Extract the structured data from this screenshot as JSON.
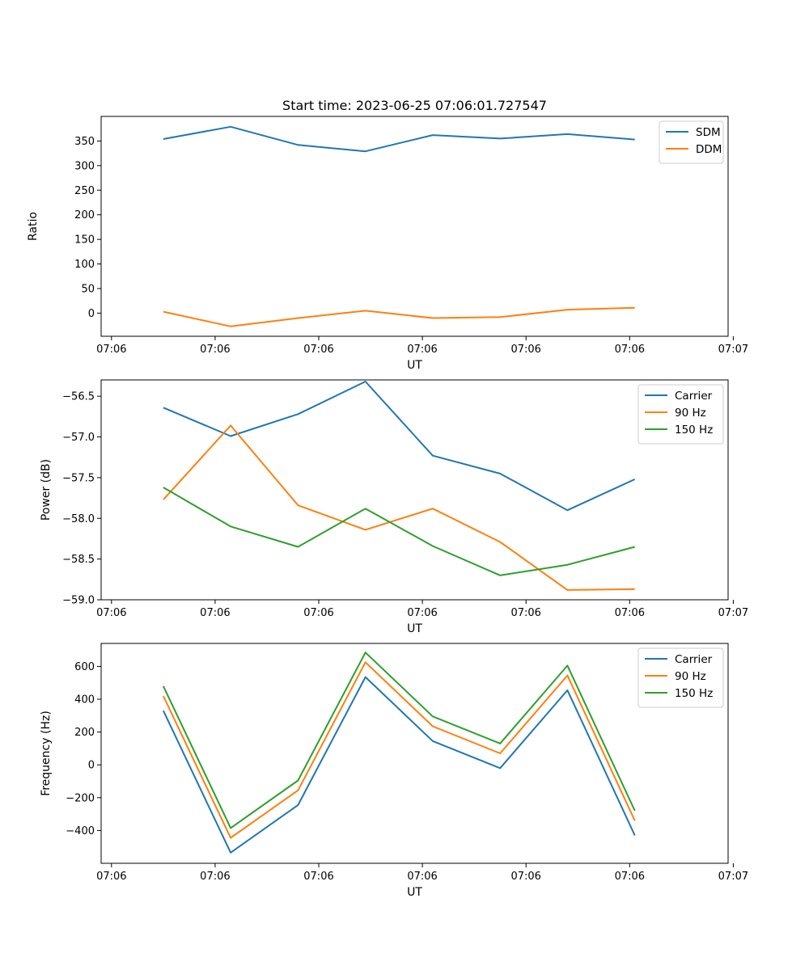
{
  "figure": {
    "title": "Start time: 2023-06-25 07:06:01.727547"
  },
  "chart_data": [
    {
      "type": "line",
      "title": "Start time: 2023-06-25 07:06:01.727547",
      "xlabel": "UT",
      "ylabel": "Ratio",
      "x_tick_labels": [
        "07:06",
        "07:06",
        "07:06",
        "07:06",
        "07:06",
        "07:06",
        "07:07"
      ],
      "x_ticks": [
        0,
        1,
        2,
        3,
        4,
        5,
        6
      ],
      "xlim": [
        -0.1,
        5.95
      ],
      "x": [
        0.5,
        1.15,
        1.8,
        2.45,
        3.1,
        3.75,
        4.4,
        5.05
      ],
      "ylim": [
        -47,
        400
      ],
      "y_ticks": [
        0,
        50,
        100,
        150,
        200,
        250,
        300,
        350
      ],
      "legend": "top-right",
      "grid": false,
      "series": [
        {
          "name": "SDM",
          "color": "#1f77b4",
          "values": [
            354,
            379,
            342,
            329,
            362,
            355,
            364,
            353
          ]
        },
        {
          "name": "DDM",
          "color": "#ff7f0e",
          "values": [
            3,
            -27,
            -10,
            5,
            -10,
            -8,
            7,
            11
          ]
        }
      ]
    },
    {
      "type": "line",
      "title": "",
      "xlabel": "UT",
      "ylabel": "Power (dB)",
      "x_tick_labels": [
        "07:06",
        "07:06",
        "07:06",
        "07:06",
        "07:06",
        "07:06",
        "07:07"
      ],
      "x_ticks": [
        0,
        1,
        2,
        3,
        4,
        5,
        6
      ],
      "xlim": [
        -0.1,
        5.95
      ],
      "x": [
        0.5,
        1.15,
        1.8,
        2.45,
        3.1,
        3.75,
        4.4,
        5.05
      ],
      "ylim": [
        -59.0,
        -56.3
      ],
      "y_ticks": [
        -59.0,
        -58.5,
        -58.0,
        -57.5,
        -57.0,
        -56.5
      ],
      "y_tick_labels": [
        "−59.0",
        "−58.5",
        "−58.0",
        "−57.5",
        "−57.0",
        "−56.5"
      ],
      "legend": "top-right",
      "grid": false,
      "series": [
        {
          "name": "Carrier",
          "color": "#1f77b4",
          "values": [
            -56.64,
            -56.99,
            -56.72,
            -56.32,
            -57.23,
            -57.45,
            -57.9,
            -57.52
          ]
        },
        {
          "name": "90 Hz",
          "color": "#ff7f0e",
          "values": [
            -57.77,
            -56.86,
            -57.84,
            -58.14,
            -57.88,
            -58.29,
            -58.88,
            -58.87
          ]
        },
        {
          "name": "150 Hz",
          "color": "#2ca02c",
          "values": [
            -57.62,
            -58.1,
            -58.35,
            -57.88,
            -58.34,
            -58.7,
            -58.57,
            -58.35
          ]
        }
      ]
    },
    {
      "type": "line",
      "title": "",
      "xlabel": "UT",
      "ylabel": "Frequency (Hz)",
      "x_tick_labels": [
        "07:06",
        "07:06",
        "07:06",
        "07:06",
        "07:06",
        "07:06",
        "07:07"
      ],
      "x_ticks": [
        0,
        1,
        2,
        3,
        4,
        5,
        6
      ],
      "xlim": [
        -0.1,
        5.95
      ],
      "x": [
        0.5,
        1.15,
        1.8,
        2.45,
        3.1,
        3.75,
        4.4,
        5.05
      ],
      "ylim": [
        -600,
        740
      ],
      "y_ticks": [
        -400,
        -200,
        0,
        200,
        400,
        600
      ],
      "y_tick_labels": [
        "−400",
        "−200",
        "0",
        "200",
        "400",
        "600"
      ],
      "legend": "top-right",
      "grid": false,
      "series": [
        {
          "name": "Carrier",
          "color": "#1f77b4",
          "values": [
            330,
            -535,
            -245,
            535,
            145,
            -20,
            455,
            -430
          ]
        },
        {
          "name": "90 Hz",
          "color": "#ff7f0e",
          "values": [
            420,
            -445,
            -155,
            625,
            235,
            70,
            545,
            -340
          ]
        },
        {
          "name": "150 Hz",
          "color": "#2ca02c",
          "values": [
            480,
            -385,
            -95,
            685,
            295,
            130,
            605,
            -280
          ]
        }
      ]
    }
  ]
}
